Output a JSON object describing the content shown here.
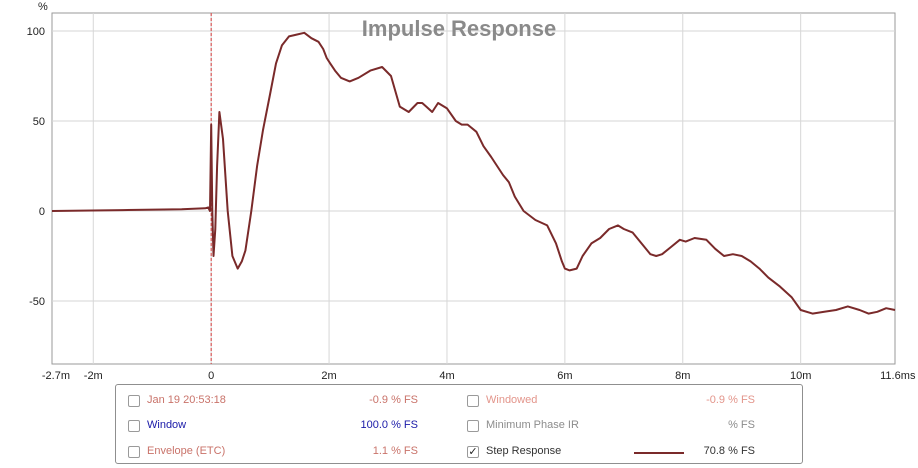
{
  "chart_data": {
    "type": "line",
    "title": "Impulse Response",
    "ylabel": "%",
    "xunit": "s",
    "xlim": [
      -2.7,
      11.6
    ],
    "ylim": [
      -85,
      110
    ],
    "grid": true,
    "x_ticks": [
      {
        "value": -2.7,
        "label": "-2.7m"
      },
      {
        "value": -2,
        "label": "-2m"
      },
      {
        "value": 0,
        "label": "0"
      },
      {
        "value": 2,
        "label": "2m"
      },
      {
        "value": 4,
        "label": "4m"
      },
      {
        "value": 6,
        "label": "6m"
      },
      {
        "value": 8,
        "label": "8m"
      },
      {
        "value": 10,
        "label": "10m"
      },
      {
        "value": 11.6,
        "label": "11.6m"
      }
    ],
    "y_ticks": [
      {
        "value": 100,
        "label": "100"
      },
      {
        "value": 50,
        "label": "50"
      },
      {
        "value": 0,
        "label": "0"
      },
      {
        "value": -50,
        "label": "-50"
      }
    ],
    "marker_x": 0,
    "series": [
      {
        "name": "Step Response",
        "color": "#7a2a2a",
        "x": [
          -2.7,
          -1.5,
          -0.5,
          -0.1,
          -0.05,
          -0.02,
          0.0,
          0.02,
          0.04,
          0.07,
          0.1,
          0.14,
          0.2,
          0.28,
          0.36,
          0.45,
          0.52,
          0.58,
          0.68,
          0.78,
          0.88,
          1.0,
          1.1,
          1.2,
          1.32,
          1.45,
          1.58,
          1.7,
          1.82,
          1.9,
          1.96,
          2.02,
          2.1,
          2.2,
          2.35,
          2.5,
          2.7,
          2.9,
          3.05,
          3.2,
          3.35,
          3.5,
          3.58,
          3.65,
          3.75,
          3.85,
          4.0,
          4.15,
          4.25,
          4.35,
          4.5,
          4.62,
          4.75,
          4.85,
          4.95,
          5.05,
          5.15,
          5.3,
          5.5,
          5.7,
          5.85,
          5.95,
          6.0,
          6.08,
          6.2,
          6.3,
          6.45,
          6.6,
          6.75,
          6.9,
          7.0,
          7.15,
          7.3,
          7.45,
          7.55,
          7.65,
          7.8,
          7.95,
          8.05,
          8.2,
          8.4,
          8.55,
          8.7,
          8.85,
          9.0,
          9.15,
          9.3,
          9.45,
          9.65,
          9.85,
          10.0,
          10.2,
          10.4,
          10.6,
          10.8,
          11.0,
          11.15,
          11.3,
          11.45,
          11.6
        ],
        "y": [
          0,
          0.5,
          1,
          1.5,
          2,
          0,
          48,
          0,
          -25,
          -10,
          25,
          55,
          40,
          0,
          -25,
          -32,
          -28,
          -22,
          0,
          25,
          45,
          65,
          82,
          92,
          97,
          98,
          99,
          96,
          94,
          90,
          85,
          82,
          78,
          74,
          72,
          74,
          78,
          80,
          75,
          58,
          55,
          60,
          60,
          58,
          55,
          60,
          57,
          50,
          48,
          48,
          44,
          36,
          30,
          25,
          20,
          16,
          8,
          0,
          -5,
          -8,
          -18,
          -28,
          -32,
          -33,
          -32,
          -25,
          -18,
          -15,
          -10,
          -8,
          -10,
          -12,
          -18,
          -24,
          -25,
          -24,
          -20,
          -16,
          -17,
          -15,
          -16,
          -21,
          -25,
          -24,
          -25,
          -28,
          -32,
          -37,
          -42,
          -48,
          -55,
          -57,
          -56,
          -55,
          -53,
          -55,
          -57,
          -56,
          -54,
          -55
        ]
      }
    ]
  },
  "legend": {
    "items": [
      {
        "label": "Jan 19 20:53:18",
        "value": "-0.9 % FS",
        "checked": false,
        "color": "#c9736a"
      },
      {
        "label": "Windowed",
        "value": "-0.9 % FS",
        "checked": false,
        "color": "#e3958b"
      },
      {
        "label": "Window",
        "value": "100.0 % FS",
        "checked": false,
        "color": "#1a1aa8"
      },
      {
        "label": "Minimum Phase IR",
        "value": "% FS",
        "checked": false,
        "color": "#8c8c8c"
      },
      {
        "label": "Envelope (ETC)",
        "value": "1.1 % FS",
        "checked": false,
        "color": "#c9736a"
      },
      {
        "label": "Step Response",
        "value": "70.8 % FS",
        "checked": true,
        "color": "#333333",
        "swatch": "#7a2a2a"
      }
    ]
  },
  "colors": {
    "plot_bg": "#ffffff",
    "grid": "#d6d6d6",
    "axis_text": "#222222",
    "title": "#8a8a8a",
    "marker": "#d43c3c"
  }
}
